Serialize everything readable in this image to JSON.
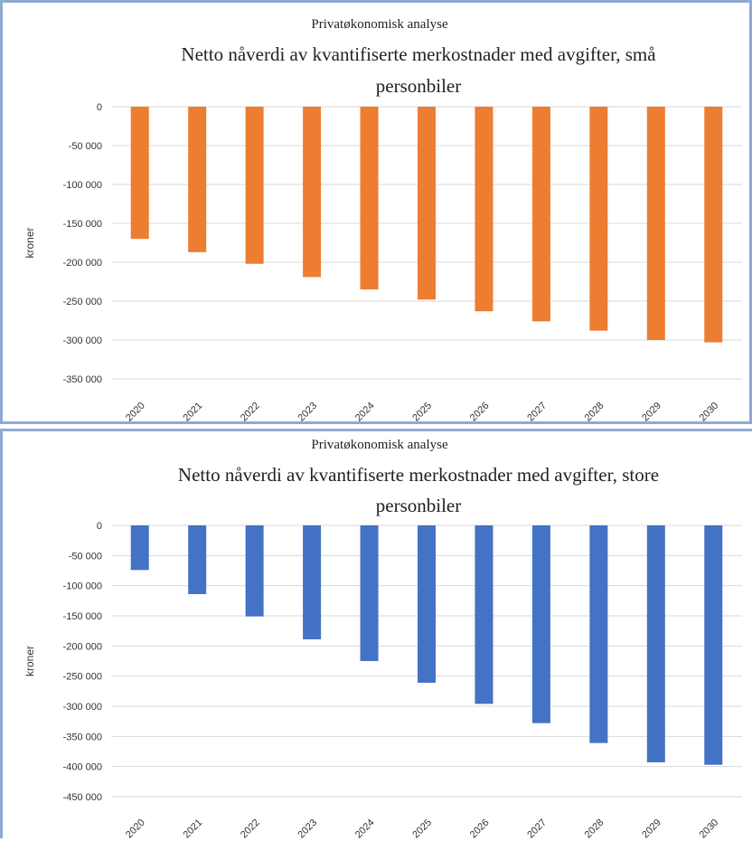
{
  "chart_data": [
    {
      "type": "bar",
      "supertitle": "Privatøkonomisk analyse",
      "title_lines": [
        "Netto nåverdi av kvantifiserte merkostnader med avgifter, små",
        "personbiler"
      ],
      "ylabel": "kroner",
      "xlabel": "",
      "ylim": [
        -350000,
        0
      ],
      "yticks": [
        0,
        -50000,
        -100000,
        -150000,
        -200000,
        -250000,
        -300000,
        -350000
      ],
      "ytick_labels": [
        "0",
        "-50 000",
        "-100 000",
        "-150 000",
        "-200 000",
        "-250 000",
        "-300 000",
        "-350 000"
      ],
      "categories": [
        "2020",
        "2021",
        "2022",
        "2023",
        "2024",
        "2025",
        "2026",
        "2027",
        "2028",
        "2029",
        "2030"
      ],
      "values": [
        -170000,
        -187000,
        -202000,
        -219000,
        -235000,
        -248000,
        -263000,
        -276000,
        -288000,
        -300000,
        -303000
      ],
      "grid": true,
      "color": "#ED7D31"
    },
    {
      "type": "bar",
      "supertitle": "Privatøkonomisk analyse",
      "title_lines": [
        "Netto nåverdi av kvantifiserte merkostnader med avgifter, store",
        "personbiler"
      ],
      "ylabel": "kroner",
      "xlabel": "",
      "ylim": [
        -450000,
        0
      ],
      "yticks": [
        0,
        -50000,
        -100000,
        -150000,
        -200000,
        -250000,
        -300000,
        -350000,
        -400000,
        -450000
      ],
      "ytick_labels": [
        "0",
        "-50 000",
        "-100 000",
        "-150 000",
        "-200 000",
        "-250 000",
        "-300 000",
        "-350 000",
        "-400 000",
        "-450 000"
      ],
      "categories": [
        "2020",
        "2021",
        "2022",
        "2023",
        "2024",
        "2025",
        "2026",
        "2027",
        "2028",
        "2029",
        "2030"
      ],
      "values": [
        -74000,
        -114000,
        -151000,
        -189000,
        -225000,
        -261000,
        -296000,
        -328000,
        -361000,
        -393000,
        -397000
      ],
      "grid": true,
      "color": "#4472C4"
    }
  ]
}
